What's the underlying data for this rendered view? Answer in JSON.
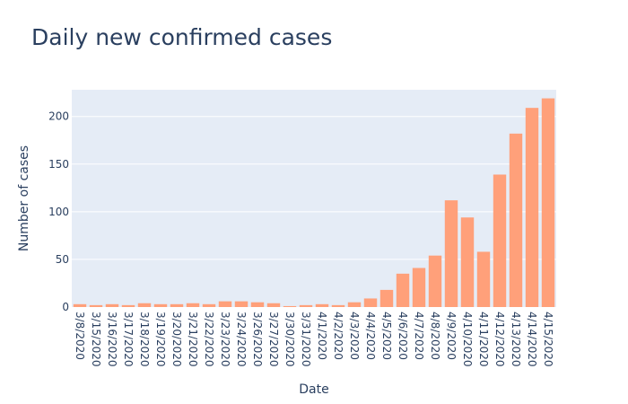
{
  "colors": {
    "plot_background": "#e5ecf6",
    "grid": "#ffffff",
    "bar": "#ffa07a",
    "text": "#2a3f5f"
  },
  "chart_data": {
    "type": "bar",
    "title": "Daily new confirmed cases",
    "xlabel": "Date",
    "ylabel": "Number of cases",
    "ylim": [
      0,
      228
    ],
    "yticks": [
      0,
      50,
      100,
      150,
      200
    ],
    "grid": true,
    "legend": "none",
    "categories": [
      "3/8/2020",
      "3/15/2020",
      "3/16/2020",
      "3/17/2020",
      "3/18/2020",
      "3/19/2020",
      "3/20/2020",
      "3/21/2020",
      "3/22/2020",
      "3/23/2020",
      "3/24/2020",
      "3/26/2020",
      "3/27/2020",
      "3/30/2020",
      "3/31/2020",
      "4/1/2020",
      "4/2/2020",
      "4/3/2020",
      "4/4/2020",
      "4/5/2020",
      "4/6/2020",
      "4/7/2020",
      "4/8/2020",
      "4/9/2020",
      "4/10/2020",
      "4/11/2020",
      "4/12/2020",
      "4/13/2020",
      "4/14/2020",
      "4/15/2020"
    ],
    "values": [
      3,
      2,
      3,
      2,
      4,
      3,
      3,
      4,
      3,
      6,
      6,
      5,
      4,
      1,
      2,
      3,
      2,
      5,
      9,
      18,
      35,
      41,
      54,
      112,
      94,
      58,
      139,
      182,
      209,
      219
    ]
  }
}
